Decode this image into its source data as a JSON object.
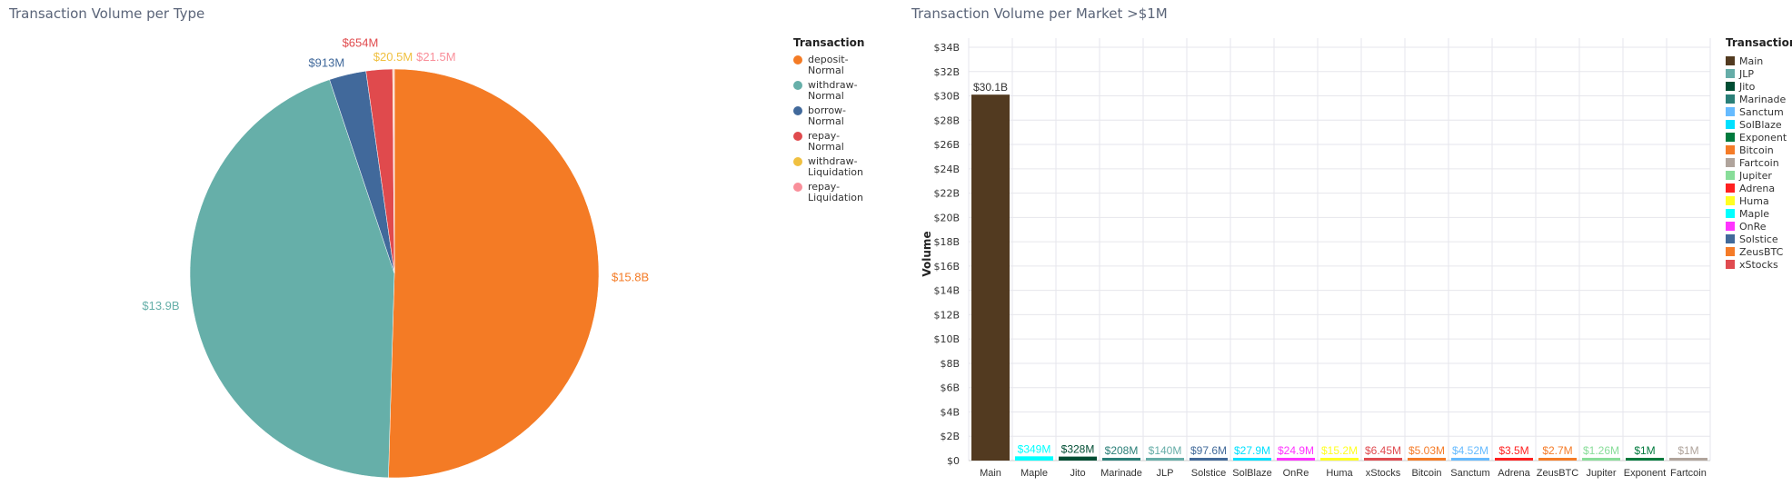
{
  "chart_data": [
    {
      "type": "pie",
      "title": "Transaction Volume per Type",
      "legend_title": "Transaction",
      "legend_position": "right",
      "slices": [
        {
          "label": "deposit-Normal",
          "value": 15800000000,
          "display": "$15.8B",
          "color": "#f47b25"
        },
        {
          "label": "withdraw-Normal",
          "value": 13900000000,
          "display": "$13.9B",
          "color": "#66afa9"
        },
        {
          "label": "borrow-Normal",
          "value": 913000000,
          "display": "$913M",
          "color": "#41699b"
        },
        {
          "label": "repay-Normal",
          "value": 654000000,
          "display": "$654M",
          "color": "#e04a4d"
        },
        {
          "label": "withdraw-Liquidation",
          "value": 20500000,
          "display": "$20.5M",
          "color": "#f0c040"
        },
        {
          "label": "repay-Liquidation",
          "value": 21500000,
          "display": "$21.5M",
          "color": "#f98f9a"
        }
      ]
    },
    {
      "type": "bar",
      "title": "Transaction Volume per Market >$1M",
      "xlabel": "",
      "ylabel": "Volume",
      "ylim": [
        0,
        34000000000
      ],
      "yticks": [
        "$0",
        "$2B",
        "$4B",
        "$6B",
        "$8B",
        "$10B",
        "$12B",
        "$14B",
        "$16B",
        "$18B",
        "$20B",
        "$22B",
        "$24B",
        "$26B",
        "$28B",
        "$30B",
        "$32B",
        "$34B"
      ],
      "grid": true,
      "legend_title": "Transaction",
      "legend_position": "right",
      "categories": [
        "Main",
        "Maple",
        "Jito",
        "Marinade",
        "JLP",
        "Solstice",
        "SolBlaze",
        "OnRe",
        "Huma",
        "xStocks",
        "Bitcoin",
        "Sanctum",
        "Adrena",
        "ZeusBTC",
        "Jupiter",
        "Exponent",
        "Fartcoin"
      ],
      "values": [
        30100000000,
        349000000,
        328000000,
        208000000,
        140000000,
        97600000,
        27900000,
        24900000,
        15200000,
        6450000,
        5030000,
        4520000,
        3500000,
        2700000,
        1260000,
        1000000,
        1000000
      ],
      "labels": [
        "$30.1B",
        "$349M",
        "$328M",
        "$208M",
        "$140M",
        "$97.6M",
        "$27.9M",
        "$24.9M",
        "$15.2M",
        "$6.45M",
        "$5.03M",
        "$4.52M",
        "$3.5M",
        "$2.7M",
        "$1.26M",
        "$1M",
        "$1M"
      ],
      "colors": {
        "Main": "#523a20",
        "JLP": "#66ada8",
        "Jito": "#004d33",
        "Marinade": "#2a7f78",
        "Sanctum": "#66bbff",
        "SolBlaze": "#00e0ff",
        "Exponent": "#007a3d",
        "Bitcoin": "#f57b27",
        "Fartcoin": "#b0a49c",
        "Jupiter": "#88dd99",
        "Adrena": "#ff2020",
        "Huma": "#ffff22",
        "Maple": "#00ffff",
        "OnRe": "#ff33ff",
        "Solstice": "#426a9a",
        "ZeusBTC": "#f57b27",
        "xStocks": "#e04b50"
      },
      "legend_order": [
        "Main",
        "JLP",
        "Jito",
        "Marinade",
        "Sanctum",
        "SolBlaze",
        "Exponent",
        "Bitcoin",
        "Fartcoin",
        "Jupiter",
        "Adrena",
        "Huma",
        "Maple",
        "OnRe",
        "Solstice",
        "ZeusBTC",
        "xStocks"
      ]
    }
  ]
}
